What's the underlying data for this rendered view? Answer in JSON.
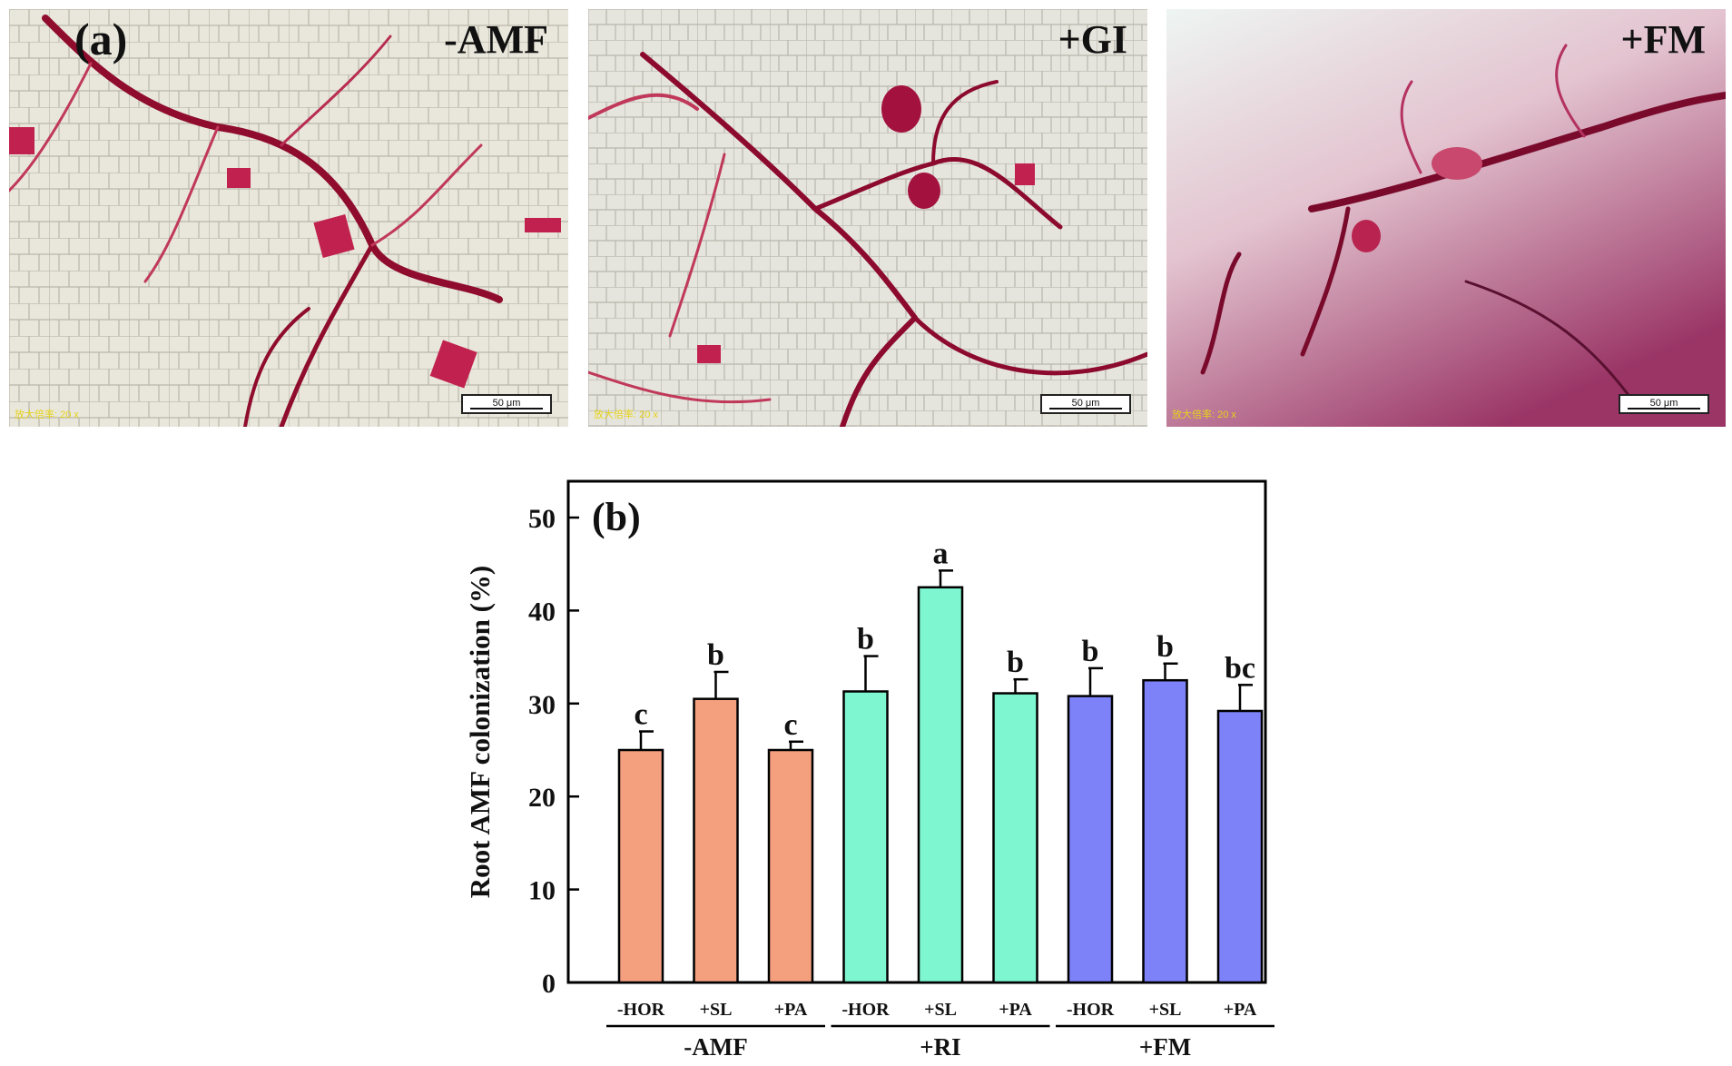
{
  "panel_a": {
    "label": "(a)",
    "photos": [
      {
        "label": "-AMF",
        "scale_label": "50 μm",
        "magnification": "放大倍率: 20 x"
      },
      {
        "label": "+GI",
        "scale_label": "50 μm",
        "magnification": "放大倍率: 20 x"
      },
      {
        "label": "+FM",
        "scale_label": "50 μm",
        "magnification": "放大倍率: 20 x"
      }
    ]
  },
  "chart_data": {
    "type": "bar",
    "panel_label": "(b)",
    "ylabel": "Root AMF colonization (%)",
    "ylim": [
      0,
      50
    ],
    "yticks": [
      0,
      10,
      20,
      30,
      40,
      50
    ],
    "categories": [
      "-HOR",
      "+SL",
      "+PA",
      "-HOR",
      "+SL",
      "+PA",
      "-HOR",
      "+SL",
      "+PA"
    ],
    "groups": [
      {
        "name": "-AMF",
        "color": "#F4A07F",
        "start": 0,
        "count": 3
      },
      {
        "name": "+RI",
        "color": "#7EF6CF",
        "start": 3,
        "count": 3
      },
      {
        "name": "+FM",
        "color": "#7D82F8",
        "start": 6,
        "count": 3
      }
    ],
    "values": [
      25.0,
      30.5,
      25.0,
      31.3,
      42.5,
      31.1,
      30.8,
      32.5,
      29.2
    ],
    "errors": [
      2.0,
      2.9,
      0.9,
      3.8,
      1.8,
      1.5,
      3.0,
      1.8,
      2.8
    ],
    "letters": [
      "c",
      "b",
      "c",
      "b",
      "a",
      "b",
      "b",
      "b",
      "bc"
    ]
  }
}
